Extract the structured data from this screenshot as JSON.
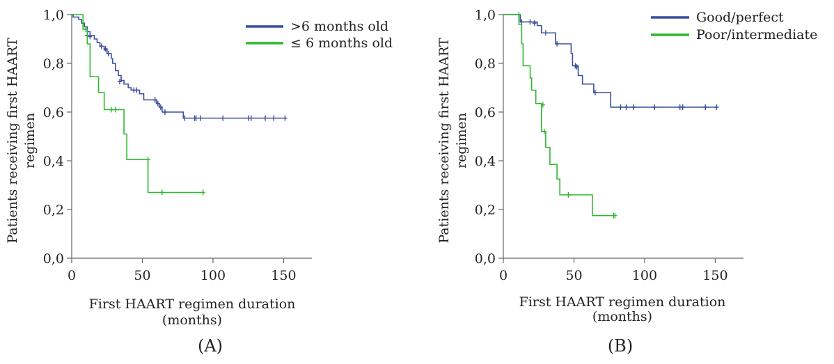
{
  "chart_data": [
    {
      "type": "line",
      "subtype": "kaplan-meier step",
      "panel_label": "(A)",
      "xlabel": [
        "First HAART regimen duration",
        "(months)"
      ],
      "ylabel": [
        "Patients receiving first HAART",
        "regimen"
      ],
      "xlim": [
        0,
        170
      ],
      "ylim": [
        0,
        1.0
      ],
      "xticks": [
        0,
        50,
        100,
        150
      ],
      "xtick_labels": [
        "0",
        "50",
        "100",
        "150"
      ],
      "yticks": [
        0,
        0.2,
        0.4,
        0.6,
        0.8,
        1.0
      ],
      "ytick_labels": [
        "0,0",
        "0,2",
        "0,4",
        "0,6",
        "0,8",
        "1,0"
      ],
      "legend_position": "top-right",
      "series": [
        {
          "name": ">6 months old",
          "color": "#3a4f9c",
          "steps": [
            [
              0,
              1.0
            ],
            [
              1,
              0.99
            ],
            [
              5,
              0.98
            ],
            [
              7,
              0.965
            ],
            [
              9,
              0.95
            ],
            [
              11,
              0.93
            ],
            [
              13,
              0.915
            ],
            [
              16,
              0.9
            ],
            [
              18,
              0.885
            ],
            [
              20,
              0.87
            ],
            [
              23,
              0.855
            ],
            [
              25,
              0.84
            ],
            [
              28,
              0.82
            ],
            [
              29,
              0.8
            ],
            [
              31,
              0.77
            ],
            [
              33,
              0.75
            ],
            [
              35,
              0.73
            ],
            [
              37,
              0.715
            ],
            [
              40,
              0.7
            ],
            [
              42,
              0.69
            ],
            [
              48,
              0.675
            ],
            [
              51,
              0.65
            ],
            [
              60,
              0.635
            ],
            [
              62,
              0.62
            ],
            [
              64,
              0.6
            ],
            [
              79,
              0.575
            ],
            [
              151,
              0.575
            ]
          ],
          "censored": [
            [
              11,
              0.915
            ],
            [
              13,
              0.91
            ],
            [
              21,
              0.87
            ],
            [
              24,
              0.86
            ],
            [
              26,
              0.84
            ],
            [
              34,
              0.725
            ],
            [
              44,
              0.69
            ],
            [
              46,
              0.69
            ],
            [
              59,
              0.65
            ],
            [
              61,
              0.635
            ],
            [
              63,
              0.62
            ],
            [
              66,
              0.6
            ],
            [
              80,
              0.575
            ],
            [
              87,
              0.575
            ],
            [
              88,
              0.575
            ],
            [
              91,
              0.575
            ],
            [
              107,
              0.575
            ],
            [
              125,
              0.575
            ],
            [
              127,
              0.575
            ],
            [
              137,
              0.575
            ],
            [
              143,
              0.575
            ],
            [
              151,
              0.575
            ]
          ]
        },
        {
          "name": "≤ 6 months old",
          "color": "#2db92d",
          "steps": [
            [
              0,
              1.0
            ],
            [
              8,
              0.94
            ],
            [
              11,
              0.88
            ],
            [
              13,
              0.745
            ],
            [
              19,
              0.68
            ],
            [
              23,
              0.61
            ],
            [
              37,
              0.51
            ],
            [
              39,
              0.405
            ],
            [
              54,
              0.27
            ],
            [
              93,
              0.27
            ]
          ],
          "censored": [
            [
              10,
              0.94
            ],
            [
              28,
              0.61
            ],
            [
              31,
              0.61
            ],
            [
              54,
              0.405
            ],
            [
              64,
              0.27
            ],
            [
              93,
              0.27
            ]
          ]
        }
      ]
    },
    {
      "type": "line",
      "subtype": "kaplan-meier step",
      "panel_label": "(B)",
      "xlabel": [
        "First HAART regimen duration",
        "(months)"
      ],
      "ylabel": [
        "Patients receiving first HAART",
        "regimen"
      ],
      "xlim": [
        0,
        170
      ],
      "ylim": [
        0,
        1.0
      ],
      "xticks": [
        0,
        50,
        100,
        150
      ],
      "xtick_labels": [
        "0",
        "50",
        "100",
        "150"
      ],
      "yticks": [
        0,
        0.2,
        0.4,
        0.6,
        0.8,
        1.0
      ],
      "ytick_labels": [
        "0,0",
        "0,2",
        "0,4",
        "0,6",
        "0,8",
        "1,0"
      ],
      "legend_position": "top-right",
      "series": [
        {
          "name": "Good/perfect",
          "color": "#3a4f9c",
          "steps": [
            [
              0,
              1.0
            ],
            [
              12,
              0.97
            ],
            [
              24,
              0.955
            ],
            [
              27,
              0.925
            ],
            [
              37,
              0.88
            ],
            [
              48,
              0.84
            ],
            [
              49,
              0.79
            ],
            [
              53,
              0.75
            ],
            [
              56,
              0.715
            ],
            [
              64,
              0.68
            ],
            [
              76,
              0.62
            ],
            [
              151,
              0.62
            ]
          ],
          "censored": [
            [
              13,
              0.97
            ],
            [
              19,
              0.97
            ],
            [
              22,
              0.965
            ],
            [
              30,
              0.925
            ],
            [
              38,
              0.88
            ],
            [
              51,
              0.79
            ],
            [
              52,
              0.785
            ],
            [
              65,
              0.68
            ],
            [
              83,
              0.62
            ],
            [
              87,
              0.62
            ],
            [
              92,
              0.62
            ],
            [
              107,
              0.62
            ],
            [
              125,
              0.62
            ],
            [
              127,
              0.62
            ],
            [
              143,
              0.62
            ],
            [
              151,
              0.62
            ]
          ]
        },
        {
          "name": "Poor/intermediate",
          "color": "#2db92d",
          "steps": [
            [
              0,
              1.0
            ],
            [
              11,
              0.96
            ],
            [
              13,
              0.88
            ],
            [
              14,
              0.79
            ],
            [
              19,
              0.74
            ],
            [
              20,
              0.69
            ],
            [
              23,
              0.635
            ],
            [
              27,
              0.52
            ],
            [
              30,
              0.455
            ],
            [
              33,
              0.385
            ],
            [
              38,
              0.325
            ],
            [
              40,
              0.26
            ],
            [
              63,
              0.175
            ],
            [
              79,
              0.175
            ]
          ],
          "censored": [
            [
              11,
              1.0
            ],
            [
              28,
              0.63
            ],
            [
              29,
              0.52
            ],
            [
              46,
              0.26
            ],
            [
              78,
              0.175
            ],
            [
              79,
              0.175
            ]
          ]
        }
      ]
    }
  ]
}
